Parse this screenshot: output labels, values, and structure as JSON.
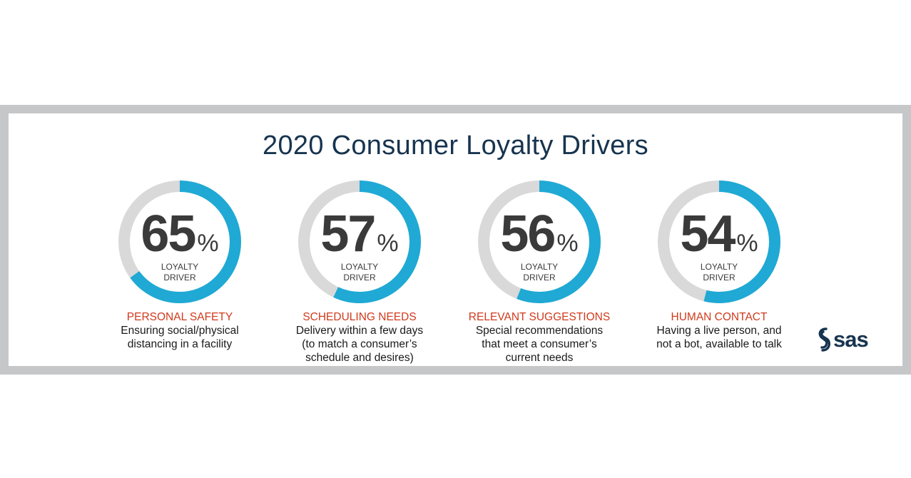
{
  "chart_data": {
    "type": "donut",
    "title": "2020 Consumer Loyalty Drivers",
    "items": [
      {
        "value": 65,
        "unit": "%",
        "caption": [
          "LOYALTY",
          "DRIVER"
        ],
        "category": "PERSONAL SAFETY",
        "description": [
          "Ensuring social/physical",
          "distancing in a facility"
        ]
      },
      {
        "value": 57,
        "unit": "%",
        "caption": [
          "LOYALTY",
          "DRIVER"
        ],
        "category": "SCHEDULING NEEDS",
        "description": [
          "Delivery within a few days",
          "(to match a consumer’s",
          "schedule and desires)"
        ]
      },
      {
        "value": 56,
        "unit": "%",
        "caption": [
          "LOYALTY",
          "DRIVER"
        ],
        "category": "RELEVANT SUGGESTIONS",
        "description": [
          "Special recommendations",
          "that meet a consumer’s",
          "current needs"
        ]
      },
      {
        "value": 54,
        "unit": "%",
        "caption": [
          "LOYALTY",
          "DRIVER"
        ],
        "category": "HUMAN CONTACT",
        "description": [
          "Having a live person, and",
          "not a bot, available to talk"
        ]
      }
    ],
    "colors": {
      "arc": "#1fa9d4",
      "track": "#d9d9d9",
      "category": "#d13a1c",
      "title": "#17344f"
    }
  },
  "logo": {
    "text": "sas",
    "color": "#17344f"
  }
}
